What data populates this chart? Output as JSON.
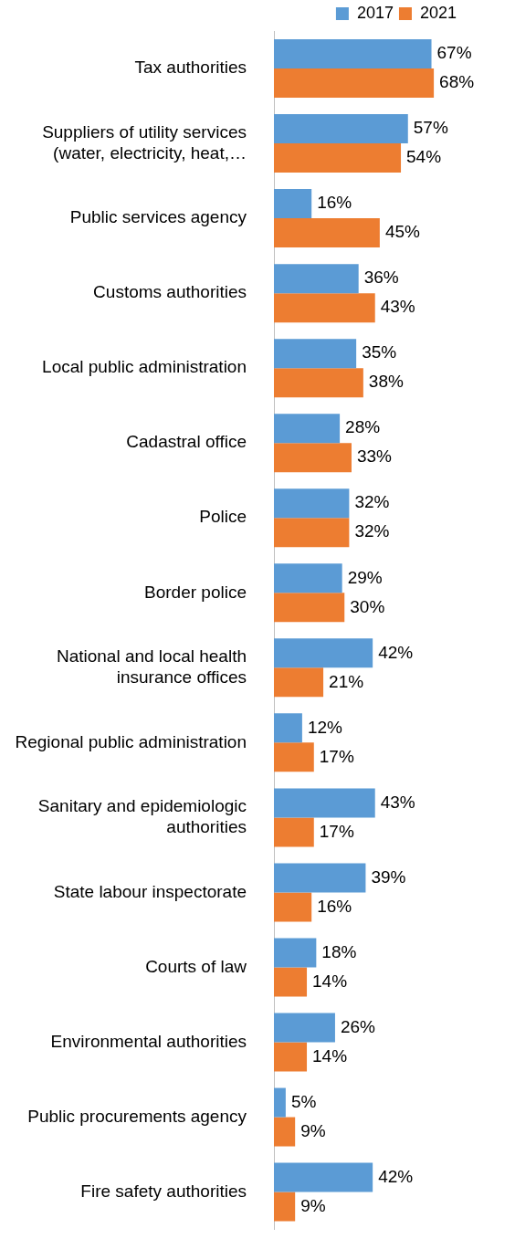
{
  "chart_data": {
    "type": "bar",
    "orientation": "horizontal",
    "legend": "top right",
    "grid": false,
    "categories": [
      "Tax authorities",
      "Suppliers of utility services (water, electricity, heat,…",
      "Public services agency",
      "Customs authorities",
      "Local public administration",
      "Cadastral office",
      "Police",
      "Border police",
      "National and local health insurance offices",
      "Regional public administration",
      "Sanitary and epidemiologic authorities",
      "State labour inspectorate",
      "Courts of law",
      "Environmental authorities",
      "Public procurements agency",
      "Fire safety authorities"
    ],
    "series": [
      {
        "name": "2017",
        "color": "#5b9bd5",
        "values": [
          67,
          57,
          16,
          36,
          35,
          28,
          32,
          29,
          42,
          12,
          43,
          39,
          18,
          26,
          5,
          42
        ],
        "value_labels": [
          "67%",
          "57%",
          "16%",
          "36%",
          "35%",
          "28%",
          "32%",
          "29%",
          "42%",
          "12%",
          "43%",
          "39%",
          "18%",
          "26%",
          "5%",
          "42%"
        ]
      },
      {
        "name": "2021",
        "color": "#ed7d31",
        "values": [
          68,
          54,
          45,
          43,
          38,
          33,
          32,
          30,
          21,
          17,
          17,
          16,
          14,
          14,
          9,
          9
        ],
        "value_labels": [
          "68%",
          "54%",
          "45%",
          "43%",
          "38%",
          "33%",
          "32%",
          "30%",
          "21%",
          "17%",
          "17%",
          "16%",
          "14%",
          "14%",
          "9%",
          "9%"
        ]
      }
    ]
  }
}
